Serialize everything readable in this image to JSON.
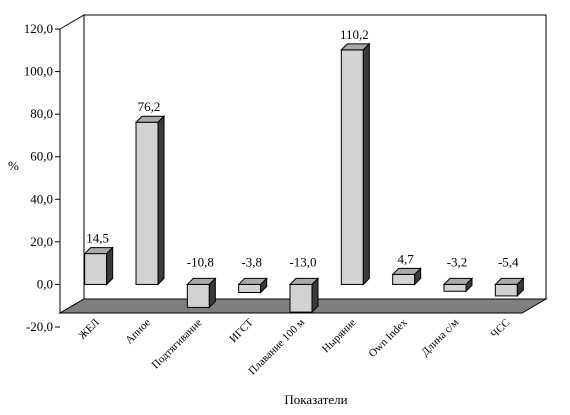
{
  "chart_data": {
    "type": "bar",
    "title": "",
    "xlabel": "Показатели",
    "ylabel": "%",
    "ylim": [
      -20,
      120
    ],
    "yticks": [
      "-20,0",
      "0,0",
      "20,0",
      "40,0",
      "60,0",
      "80,0",
      "100,0",
      "120,0"
    ],
    "categories": [
      "ЖЕЛ",
      "Апное",
      "Подтягивание",
      "ИГСТ",
      "Плавание 100 м",
      "Ныряние",
      "Own Index",
      "Длина с/м",
      "ЧСС"
    ],
    "values": [
      14.5,
      76.2,
      -10.8,
      -3.8,
      -13.0,
      110.2,
      4.7,
      -3.2,
      -5.4
    ],
    "value_labels": [
      "14,5",
      "76,2",
      "-10,8",
      "-3,8",
      "-13,0",
      "110,2",
      "4,7",
      "-3,2",
      "-5,4"
    ],
    "grid": false,
    "legend": "none",
    "colors": {
      "bar_front": "#d2d2d2",
      "bar_top": "#a9a9a9",
      "bar_side": "#3a3a3a",
      "floor": "#7f7f7f"
    }
  }
}
